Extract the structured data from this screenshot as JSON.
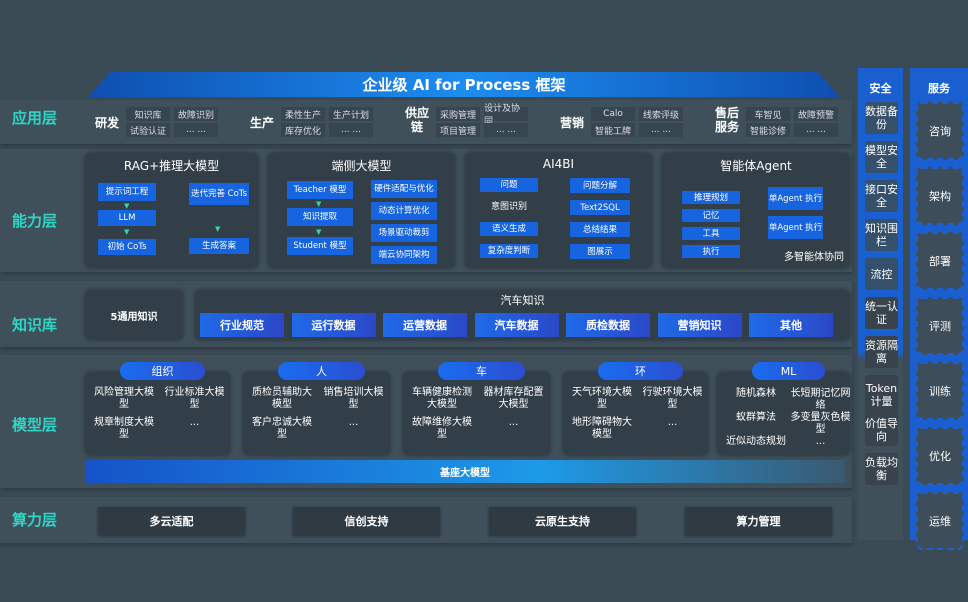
{
  "title": "企业级 AI for Process 框架",
  "layers": {
    "app": "应用层",
    "capability": "能力层",
    "knowledge": "知识库",
    "model": "模型层",
    "compute": "算力层"
  },
  "app_groups": [
    {
      "label": "研发",
      "items": [
        "知识库",
        "故障识别",
        "试验认证",
        "... ..."
      ]
    },
    {
      "label": "生产",
      "items": [
        "柔性生产",
        "生产计划",
        "库存优化",
        "... ..."
      ]
    },
    {
      "label": "供应链",
      "items": [
        "采购管理",
        "设计及协同",
        "项目管理",
        "... ..."
      ]
    },
    {
      "label": "营销",
      "items": [
        "Calo",
        "线索评级",
        "智能工牌",
        "... ..."
      ]
    },
    {
      "label": "售后服务",
      "items": [
        "车智见",
        "故障预警",
        "智能诊修",
        "... ..."
      ]
    }
  ],
  "capability": {
    "rag": {
      "title": "RAG+推理大模型",
      "steps": [
        "提示词工程",
        "LLM",
        "初始 CoTs"
      ],
      "right": [
        "迭代完善 CoTs",
        "生成答案"
      ]
    },
    "edge": {
      "title": "端侧大模型",
      "steps": [
        "Teacher 模型",
        "知识提取",
        "Student 模型"
      ],
      "right": [
        "硬件适配与优化",
        "动态计算优化",
        "场景驱动裁剪",
        "端云协同架构"
      ]
    },
    "ai4bi": {
      "title": "AI4BI",
      "left": [
        "问题",
        "意图识别",
        "语义生成",
        "复杂度判断"
      ],
      "right": [
        "问题分解",
        "Text2SQL",
        "总结结果",
        "图展示"
      ]
    },
    "agent": {
      "title": "智能体Agent",
      "left": [
        "推理规划",
        "记忆",
        "工具",
        "执行"
      ],
      "right": [
        "单Agent 执行",
        "单Agent 执行"
      ],
      "footer": "多智能体协同"
    }
  },
  "knowledge": {
    "general": "5通用知识",
    "auto_title": "汽车知识",
    "items": [
      "行业规范",
      "运行数据",
      "运营数据",
      "汽车数据",
      "质检数据",
      "营销知识",
      "其他"
    ]
  },
  "models": [
    {
      "label": "组织",
      "items": [
        "风险管理大模型",
        "行业标准大模型",
        "规章制度大模型",
        "..."
      ]
    },
    {
      "label": "人",
      "items": [
        "质检员辅助大模型",
        "销售培训大模型",
        "客户忠诚大模型",
        "..."
      ]
    },
    {
      "label": "车",
      "items": [
        "车辆健康检测大模型",
        "器材库存配置大模型",
        "故障维修大模型",
        "..."
      ]
    },
    {
      "label": "环",
      "items": [
        "天气环境大模型",
        "行驶环境大模型",
        "地形障碍物大模型",
        "..."
      ]
    },
    {
      "label": "ML",
      "items": [
        "随机森林",
        "长短期记忆网络",
        "蚁群算法",
        "多变量灰色模型",
        "近似动态规划",
        "..."
      ]
    }
  ],
  "base_model": "基座大模型",
  "compute": [
    "多云适配",
    "信创支持",
    "云原生支持",
    "算力管理"
  ],
  "security": {
    "title": "安全",
    "items": [
      "数据备份",
      "模型安全",
      "接口安全",
      "知识围栏",
      "流控",
      "统一认证",
      "资源隔离",
      "Token计量",
      "价值导向",
      "负载均衡"
    ]
  },
  "services": {
    "title": "服务",
    "items": [
      "咨询",
      "架构",
      "部署",
      "评测",
      "训练",
      "优化",
      "运维"
    ]
  }
}
